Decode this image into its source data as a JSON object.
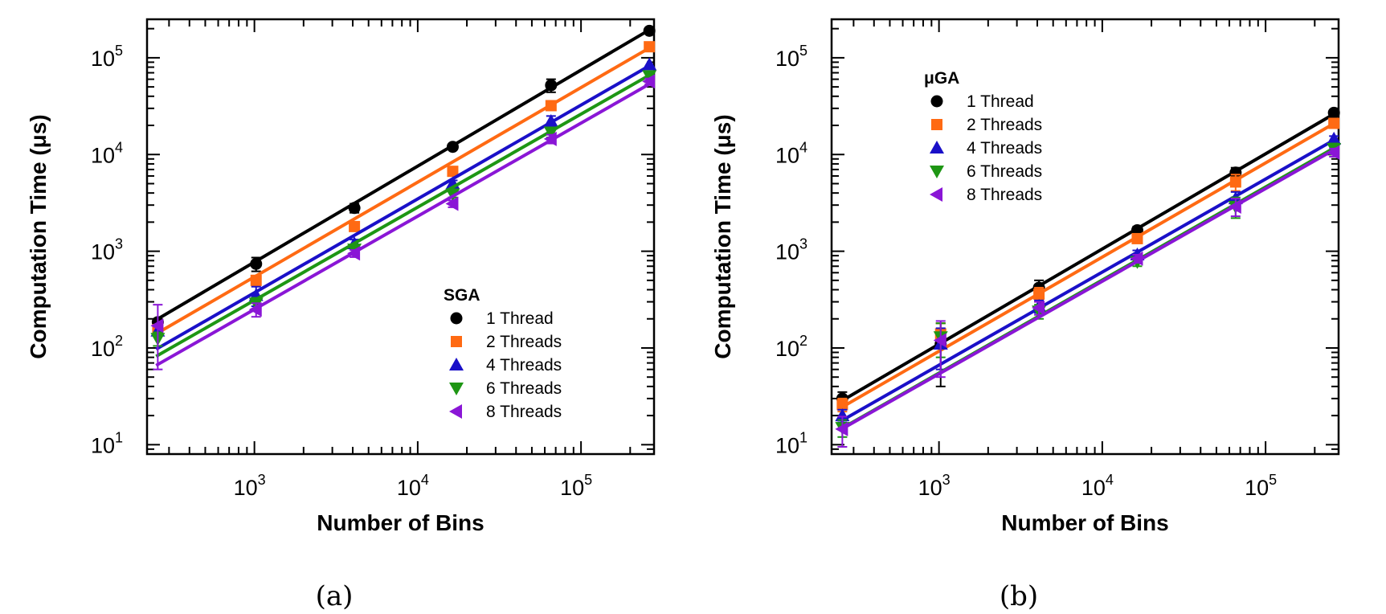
{
  "chart_data": [
    {
      "type": "scatter",
      "panel_label": "(a)",
      "xlabel": "Number of Bins",
      "ylabel": "Computation Time (μs)",
      "xscale": "log",
      "yscale": "log",
      "xlim": [
        220,
        280000
      ],
      "ylim": [
        8,
        250000
      ],
      "xticks": [
        {
          "value": 1000,
          "base": "10",
          "exp": "3"
        },
        {
          "value": 10000,
          "base": "10",
          "exp": "4"
        },
        {
          "value": 100000,
          "base": "10",
          "exp": "5"
        }
      ],
      "yticks": [
        {
          "value": 10,
          "base": "10",
          "exp": "1"
        },
        {
          "value": 100,
          "base": "10",
          "exp": "2"
        },
        {
          "value": 1000,
          "base": "10",
          "exp": "3"
        },
        {
          "value": 10000,
          "base": "10",
          "exp": "4"
        },
        {
          "value": 100000,
          "base": "10",
          "exp": "5"
        }
      ],
      "legend": {
        "title": "SGA",
        "position": "lower-right"
      },
      "x": [
        256,
        1024,
        4096,
        16384,
        65536,
        262144
      ],
      "series": [
        {
          "name": "1 Thread",
          "color": "#000000",
          "marker": "circle",
          "values": [
            185,
            740,
            2800,
            12000,
            52000,
            190000
          ],
          "errors": [
            0,
            120,
            300,
            500,
            8000,
            0
          ],
          "fit": [
            [
              250,
              195
            ],
            [
              270000,
              200000
            ]
          ]
        },
        {
          "name": "2 Threads",
          "color": "#ff6a13",
          "marker": "square",
          "values": [
            155,
            500,
            1800,
            6700,
            32000,
            130000
          ],
          "errors": [
            0,
            60,
            150,
            600,
            3000,
            0
          ],
          "fit": [
            [
              250,
              140
            ],
            [
              270000,
              130000
            ]
          ]
        },
        {
          "name": "4 Threads",
          "color": "#1a10c8",
          "marker": "triangle-up",
          "values": [
            150,
            350,
            1200,
            5000,
            22000,
            85000
          ],
          "errors": [
            0,
            80,
            120,
            400,
            3000,
            0
          ],
          "fit": [
            [
              250,
              97
            ],
            [
              270000,
              85000
            ]
          ]
        },
        {
          "name": "6 Threads",
          "color": "#1e9614",
          "marker": "triangle-down",
          "values": [
            125,
            290,
            1050,
            3900,
            17000,
            65000
          ],
          "errors": [
            20,
            40,
            100,
            300,
            2000,
            0
          ],
          "fit": [
            [
              250,
              82
            ],
            [
              270000,
              68000
            ]
          ]
        },
        {
          "name": "8 Threads",
          "color": "#8a16d6",
          "marker": "triangle-left",
          "values": [
            170,
            250,
            950,
            3100,
            14500,
            57000
          ],
          "errors": [
            110,
            40,
            80,
            250,
            1500,
            4000
          ],
          "fit": [
            [
              250,
              66
            ],
            [
              270000,
              55000
            ]
          ]
        }
      ]
    },
    {
      "type": "scatter",
      "panel_label": "(b)",
      "xlabel": "Number of Bins",
      "ylabel": "Computation Time (μs)",
      "xscale": "log",
      "yscale": "log",
      "xlim": [
        220,
        280000
      ],
      "ylim": [
        8,
        250000
      ],
      "xticks": [
        {
          "value": 1000,
          "base": "10",
          "exp": "3"
        },
        {
          "value": 10000,
          "base": "10",
          "exp": "4"
        },
        {
          "value": 100000,
          "base": "10",
          "exp": "5"
        }
      ],
      "yticks": [
        {
          "value": 10,
          "base": "10",
          "exp": "1"
        },
        {
          "value": 100,
          "base": "10",
          "exp": "2"
        },
        {
          "value": 1000,
          "base": "10",
          "exp": "3"
        },
        {
          "value": 10000,
          "base": "10",
          "exp": "4"
        },
        {
          "value": 100000,
          "base": "10",
          "exp": "5"
        }
      ],
      "legend": {
        "title": "μGA",
        "position": "upper-left"
      },
      "x": [
        256,
        1024,
        4096,
        16384,
        65536,
        262144
      ],
      "series": [
        {
          "name": "1 Thread",
          "color": "#000000",
          "marker": "circle",
          "values": [
            30,
            110,
            420,
            1650,
            6500,
            27000
          ],
          "errors": [
            5,
            70,
            80,
            150,
            800,
            1500
          ],
          "fit": [
            [
              250,
              28
            ],
            [
              270000,
              27000
            ]
          ]
        },
        {
          "name": "2 Threads",
          "color": "#ff6a13",
          "marker": "square",
          "values": [
            26,
            140,
            360,
            1350,
            5200,
            21000
          ],
          "errors": [
            4,
            40,
            60,
            100,
            1000,
            1500
          ],
          "fit": [
            [
              250,
              24
            ],
            [
              270000,
              21500
            ]
          ]
        },
        {
          "name": "4 Threads",
          "color": "#1a10c8",
          "marker": "triangle-up",
          "values": [
            20,
            110,
            270,
            920,
            3500,
            14500
          ],
          "errors": [
            3,
            50,
            40,
            100,
            600,
            1000
          ],
          "fit": [
            [
              250,
              17.5
            ],
            [
              270000,
              14500
            ]
          ]
        },
        {
          "name": "6 Threads",
          "color": "#1e9614",
          "marker": "triangle-down",
          "values": [
            15,
            130,
            240,
            780,
            2900,
            11500
          ],
          "errors": [
            3,
            50,
            40,
            80,
            700,
            1500
          ],
          "fit": [
            [
              250,
              14.5
            ],
            [
              270000,
              12000
            ]
          ]
        },
        {
          "name": "8 Threads",
          "color": "#8a16d6",
          "marker": "triangle-left",
          "values": [
            14.5,
            120,
            260,
            840,
            2900,
            10500
          ],
          "errors": [
            5,
            70,
            40,
            80,
            600,
            1000
          ],
          "fit": [
            [
              250,
              14.3
            ],
            [
              270000,
              11500
            ]
          ]
        }
      ]
    }
  ]
}
